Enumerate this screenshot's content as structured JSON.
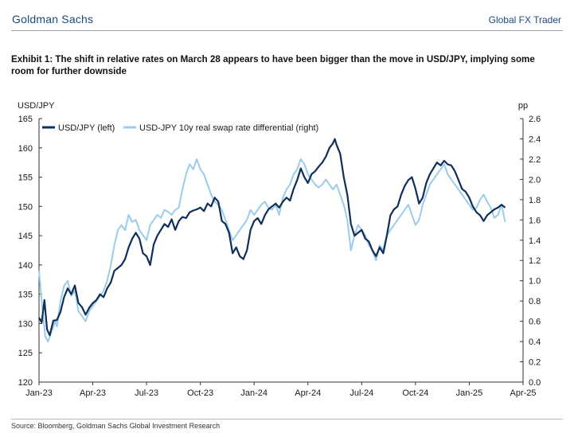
{
  "header": {
    "brand": "Goldman Sachs",
    "report": "Global FX Trader"
  },
  "exhibit_title": "Exhibit 1: The shift in relative rates on March 28 appears to have been bigger than the move in USD/JPY, implying some room for further downside",
  "source": "Source: Bloomberg, Goldman Sachs Global Investment Research",
  "colors": {
    "usdjpy": "#0d2f5a",
    "diff": "#9ccbe9",
    "brand": "#1b4a7a"
  },
  "chart_data": {
    "type": "line",
    "left_axis_title": "USD/JPY",
    "right_axis_title": "pp",
    "y_left": {
      "min": 120,
      "max": 165,
      "ticks": [
        120,
        125,
        130,
        135,
        140,
        145,
        150,
        155,
        160,
        165
      ]
    },
    "y_right": {
      "min": 0.0,
      "max": 2.6,
      "ticks": [
        "0.0",
        "0.2",
        "0.4",
        "0.6",
        "0.8",
        "1.0",
        "1.2",
        "1.4",
        "1.6",
        "1.8",
        "2.0",
        "2.2",
        "2.4",
        "2.6"
      ]
    },
    "x_ticks": [
      "Jan-23",
      "Apr-23",
      "Jul-23",
      "Oct-23",
      "Jan-24",
      "Apr-24",
      "Jul-24",
      "Oct-24",
      "Jan-25",
      "Apr-25"
    ],
    "x_range_months": [
      0,
      27
    ],
    "legend_position": "top-left",
    "grid": false,
    "series": [
      {
        "name": "USD/JPY (left)",
        "axis": "left",
        "points": [
          [
            0.0,
            131.0
          ],
          [
            0.15,
            130.2
          ],
          [
            0.3,
            134.0
          ],
          [
            0.45,
            129.0
          ],
          [
            0.6,
            128.0
          ],
          [
            0.8,
            130.5
          ],
          [
            1.0,
            130.6
          ],
          [
            1.2,
            132.0
          ],
          [
            1.4,
            134.5
          ],
          [
            1.6,
            136.0
          ],
          [
            1.8,
            135.0
          ],
          [
            2.0,
            136.5
          ],
          [
            2.2,
            133.5
          ],
          [
            2.4,
            132.8
          ],
          [
            2.6,
            131.5
          ],
          [
            2.8,
            132.7
          ],
          [
            3.0,
            133.5
          ],
          [
            3.2,
            134.0
          ],
          [
            3.4,
            135.0
          ],
          [
            3.6,
            134.5
          ],
          [
            3.8,
            136.0
          ],
          [
            4.0,
            137.0
          ],
          [
            4.2,
            139.0
          ],
          [
            4.4,
            139.5
          ],
          [
            4.6,
            140.0
          ],
          [
            4.8,
            141.0
          ],
          [
            5.0,
            143.0
          ],
          [
            5.2,
            144.5
          ],
          [
            5.4,
            145.5
          ],
          [
            5.6,
            144.5
          ],
          [
            5.8,
            142.0
          ],
          [
            6.0,
            141.5
          ],
          [
            6.2,
            140.0
          ],
          [
            6.4,
            143.5
          ],
          [
            6.6,
            145.0
          ],
          [
            6.8,
            146.0
          ],
          [
            7.0,
            147.0
          ],
          [
            7.2,
            146.5
          ],
          [
            7.4,
            147.8
          ],
          [
            7.6,
            146.0
          ],
          [
            7.8,
            147.5
          ],
          [
            8.0,
            148.2
          ],
          [
            8.2,
            148.0
          ],
          [
            8.4,
            149.0
          ],
          [
            8.6,
            149.3
          ],
          [
            8.8,
            149.5
          ],
          [
            9.0,
            149.8
          ],
          [
            9.2,
            149.2
          ],
          [
            9.4,
            150.5
          ],
          [
            9.6,
            150.0
          ],
          [
            9.8,
            151.5
          ],
          [
            10.0,
            150.8
          ],
          [
            10.2,
            147.5
          ],
          [
            10.4,
            147.0
          ],
          [
            10.6,
            145.5
          ],
          [
            10.8,
            142.0
          ],
          [
            11.0,
            143.0
          ],
          [
            11.2,
            141.5
          ],
          [
            11.4,
            141.0
          ],
          [
            11.6,
            142.5
          ],
          [
            11.8,
            146.0
          ],
          [
            12.0,
            147.5
          ],
          [
            12.2,
            148.0
          ],
          [
            12.4,
            147.0
          ],
          [
            12.6,
            148.5
          ],
          [
            12.8,
            149.5
          ],
          [
            13.0,
            150.0
          ],
          [
            13.2,
            150.5
          ],
          [
            13.4,
            149.8
          ],
          [
            13.6,
            150.8
          ],
          [
            13.8,
            151.5
          ],
          [
            14.0,
            151.0
          ],
          [
            14.2,
            153.0
          ],
          [
            14.4,
            154.5
          ],
          [
            14.6,
            156.5
          ],
          [
            14.8,
            155.0
          ],
          [
            15.0,
            154.0
          ],
          [
            15.2,
            155.5
          ],
          [
            15.4,
            156.0
          ],
          [
            15.6,
            156.8
          ],
          [
            15.8,
            157.5
          ],
          [
            16.0,
            158.5
          ],
          [
            16.2,
            160.0
          ],
          [
            16.4,
            160.8
          ],
          [
            16.5,
            161.5
          ],
          [
            16.6,
            160.5
          ],
          [
            16.8,
            159.0
          ],
          [
            17.0,
            155.0
          ],
          [
            17.2,
            152.0
          ],
          [
            17.4,
            147.0
          ],
          [
            17.6,
            145.0
          ],
          [
            17.8,
            145.5
          ],
          [
            18.0,
            146.0
          ],
          [
            18.2,
            144.5
          ],
          [
            18.4,
            144.0
          ],
          [
            18.6,
            142.5
          ],
          [
            18.8,
            141.5
          ],
          [
            19.0,
            143.0
          ],
          [
            19.2,
            142.0
          ],
          [
            19.4,
            145.0
          ],
          [
            19.6,
            148.5
          ],
          [
            19.8,
            149.5
          ],
          [
            20.0,
            150.0
          ],
          [
            20.2,
            152.0
          ],
          [
            20.4,
            153.5
          ],
          [
            20.6,
            154.5
          ],
          [
            20.8,
            155.0
          ],
          [
            21.0,
            153.0
          ],
          [
            21.2,
            150.5
          ],
          [
            21.4,
            151.5
          ],
          [
            21.6,
            154.0
          ],
          [
            21.8,
            155.5
          ],
          [
            22.0,
            156.5
          ],
          [
            22.2,
            157.5
          ],
          [
            22.4,
            157.0
          ],
          [
            22.6,
            157.8
          ],
          [
            22.8,
            157.2
          ],
          [
            23.0,
            157.0
          ],
          [
            23.2,
            156.0
          ],
          [
            23.4,
            154.5
          ],
          [
            23.6,
            153.0
          ],
          [
            23.8,
            152.5
          ],
          [
            24.0,
            151.5
          ],
          [
            24.2,
            150.0
          ],
          [
            24.4,
            149.0
          ],
          [
            24.6,
            148.5
          ],
          [
            24.8,
            147.5
          ],
          [
            25.0,
            148.5
          ],
          [
            25.2,
            149.0
          ],
          [
            25.4,
            149.5
          ],
          [
            25.6,
            149.8
          ],
          [
            25.8,
            150.3
          ],
          [
            26.0,
            149.8
          ]
        ]
      },
      {
        "name": "USD-JPY 10y real swap rate differential (right)",
        "axis": "right",
        "points": [
          [
            0.0,
            1.1
          ],
          [
            0.1,
            0.9
          ],
          [
            0.2,
            0.7
          ],
          [
            0.35,
            0.45
          ],
          [
            0.5,
            0.4
          ],
          [
            0.7,
            0.5
          ],
          [
            0.9,
            0.6
          ],
          [
            1.0,
            0.55
          ],
          [
            1.2,
            0.8
          ],
          [
            1.4,
            0.95
          ],
          [
            1.6,
            1.0
          ],
          [
            1.8,
            0.85
          ],
          [
            2.0,
            0.9
          ],
          [
            2.2,
            0.7
          ],
          [
            2.4,
            0.65
          ],
          [
            2.6,
            0.6
          ],
          [
            2.8,
            0.7
          ],
          [
            3.0,
            0.75
          ],
          [
            3.2,
            0.8
          ],
          [
            3.4,
            0.85
          ],
          [
            3.6,
            0.9
          ],
          [
            3.8,
            1.0
          ],
          [
            4.0,
            1.15
          ],
          [
            4.2,
            1.35
          ],
          [
            4.4,
            1.5
          ],
          [
            4.6,
            1.55
          ],
          [
            4.8,
            1.5
          ],
          [
            5.0,
            1.65
          ],
          [
            5.2,
            1.58
          ],
          [
            5.4,
            1.6
          ],
          [
            5.6,
            1.5
          ],
          [
            5.8,
            1.45
          ],
          [
            6.0,
            1.4
          ],
          [
            6.2,
            1.55
          ],
          [
            6.4,
            1.6
          ],
          [
            6.6,
            1.65
          ],
          [
            6.8,
            1.62
          ],
          [
            7.0,
            1.7
          ],
          [
            7.2,
            1.68
          ],
          [
            7.4,
            1.65
          ],
          [
            7.6,
            1.7
          ],
          [
            7.8,
            1.72
          ],
          [
            8.0,
            1.9
          ],
          [
            8.2,
            2.05
          ],
          [
            8.4,
            2.15
          ],
          [
            8.6,
            2.1
          ],
          [
            8.8,
            2.2
          ],
          [
            9.0,
            2.1
          ],
          [
            9.2,
            2.05
          ],
          [
            9.4,
            1.95
          ],
          [
            9.6,
            1.85
          ],
          [
            9.8,
            1.78
          ],
          [
            10.0,
            1.75
          ],
          [
            10.2,
            1.7
          ],
          [
            10.4,
            1.6
          ],
          [
            10.6,
            1.5
          ],
          [
            10.8,
            1.4
          ],
          [
            11.0,
            1.45
          ],
          [
            11.2,
            1.5
          ],
          [
            11.4,
            1.55
          ],
          [
            11.6,
            1.6
          ],
          [
            11.8,
            1.7
          ],
          [
            12.0,
            1.65
          ],
          [
            12.2,
            1.7
          ],
          [
            12.4,
            1.75
          ],
          [
            12.6,
            1.78
          ],
          [
            12.8,
            1.72
          ],
          [
            13.0,
            1.7
          ],
          [
            13.2,
            1.75
          ],
          [
            13.4,
            1.65
          ],
          [
            13.6,
            1.82
          ],
          [
            13.8,
            1.9
          ],
          [
            14.0,
            1.95
          ],
          [
            14.2,
            2.05
          ],
          [
            14.4,
            2.1
          ],
          [
            14.6,
            2.2
          ],
          [
            14.8,
            2.15
          ],
          [
            15.0,
            2.05
          ],
          [
            15.2,
            2.0
          ],
          [
            15.4,
            1.95
          ],
          [
            15.6,
            1.92
          ],
          [
            15.8,
            1.95
          ],
          [
            16.0,
            2.0
          ],
          [
            16.2,
            1.95
          ],
          [
            16.4,
            1.9
          ],
          [
            16.6,
            1.95
          ],
          [
            16.8,
            1.85
          ],
          [
            17.0,
            1.75
          ],
          [
            17.2,
            1.6
          ],
          [
            17.4,
            1.3
          ],
          [
            17.6,
            1.45
          ],
          [
            17.8,
            1.55
          ],
          [
            18.0,
            1.5
          ],
          [
            18.2,
            1.45
          ],
          [
            18.4,
            1.35
          ],
          [
            18.6,
            1.3
          ],
          [
            18.8,
            1.2
          ],
          [
            19.0,
            1.35
          ],
          [
            19.2,
            1.3
          ],
          [
            19.4,
            1.45
          ],
          [
            19.6,
            1.5
          ],
          [
            19.8,
            1.55
          ],
          [
            20.0,
            1.6
          ],
          [
            20.2,
            1.65
          ],
          [
            20.4,
            1.7
          ],
          [
            20.6,
            1.75
          ],
          [
            20.8,
            1.65
          ],
          [
            21.0,
            1.55
          ],
          [
            21.2,
            1.6
          ],
          [
            21.4,
            1.75
          ],
          [
            21.6,
            1.85
          ],
          [
            21.8,
            1.95
          ],
          [
            22.0,
            2.0
          ],
          [
            22.2,
            2.05
          ],
          [
            22.4,
            2.1
          ],
          [
            22.6,
            2.15
          ],
          [
            22.8,
            2.05
          ],
          [
            23.0,
            2.0
          ],
          [
            23.2,
            1.95
          ],
          [
            23.4,
            1.9
          ],
          [
            23.6,
            1.85
          ],
          [
            23.8,
            1.8
          ],
          [
            24.0,
            1.75
          ],
          [
            24.2,
            1.7
          ],
          [
            24.4,
            1.72
          ],
          [
            24.6,
            1.8
          ],
          [
            24.8,
            1.85
          ],
          [
            25.0,
            1.78
          ],
          [
            25.2,
            1.72
          ],
          [
            25.4,
            1.62
          ],
          [
            25.6,
            1.65
          ],
          [
            25.8,
            1.75
          ],
          [
            26.0,
            1.58
          ]
        ]
      }
    ]
  }
}
